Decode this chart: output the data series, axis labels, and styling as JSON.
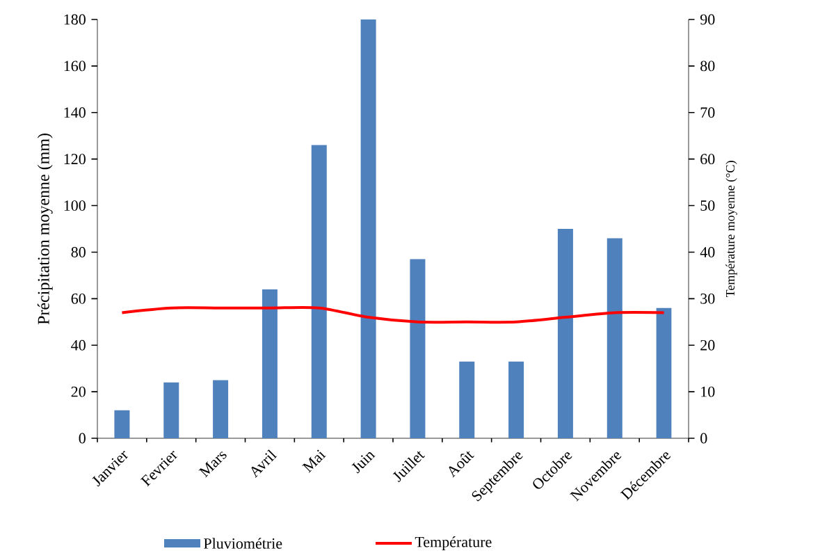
{
  "chart_data": {
    "type": "bar",
    "categories": [
      "Janvier",
      "Fevrier",
      "Mars",
      "Avril",
      "Mai",
      "Juin",
      "Juillet",
      "Août",
      "Septembre",
      "Octobre",
      "Novembre",
      "Décembre"
    ],
    "series": [
      {
        "name": "Pluviométrie",
        "color": "#4f81bd",
        "values": [
          12,
          24,
          25,
          64,
          126,
          180,
          77,
          33,
          33,
          90,
          86,
          56
        ]
      },
      {
        "name": "Température",
        "type": "line",
        "axis": "y2",
        "color": "#ff0000",
        "values": [
          27,
          28,
          28,
          28,
          28,
          26,
          25,
          25,
          25,
          26,
          27,
          27
        ]
      }
    ],
    "ylabel": "Précipitation moyenne (mm)",
    "y2label": "Température moyenne (°C)",
    "ylim": [
      0,
      180
    ],
    "yticks": [
      0,
      20,
      40,
      60,
      80,
      100,
      120,
      140,
      160,
      180
    ],
    "y2lim": [
      0,
      90
    ],
    "y2ticks": [
      0,
      10,
      20,
      30,
      40,
      50,
      60,
      70,
      80,
      90
    ],
    "legend": "bottom",
    "grid": false
  }
}
